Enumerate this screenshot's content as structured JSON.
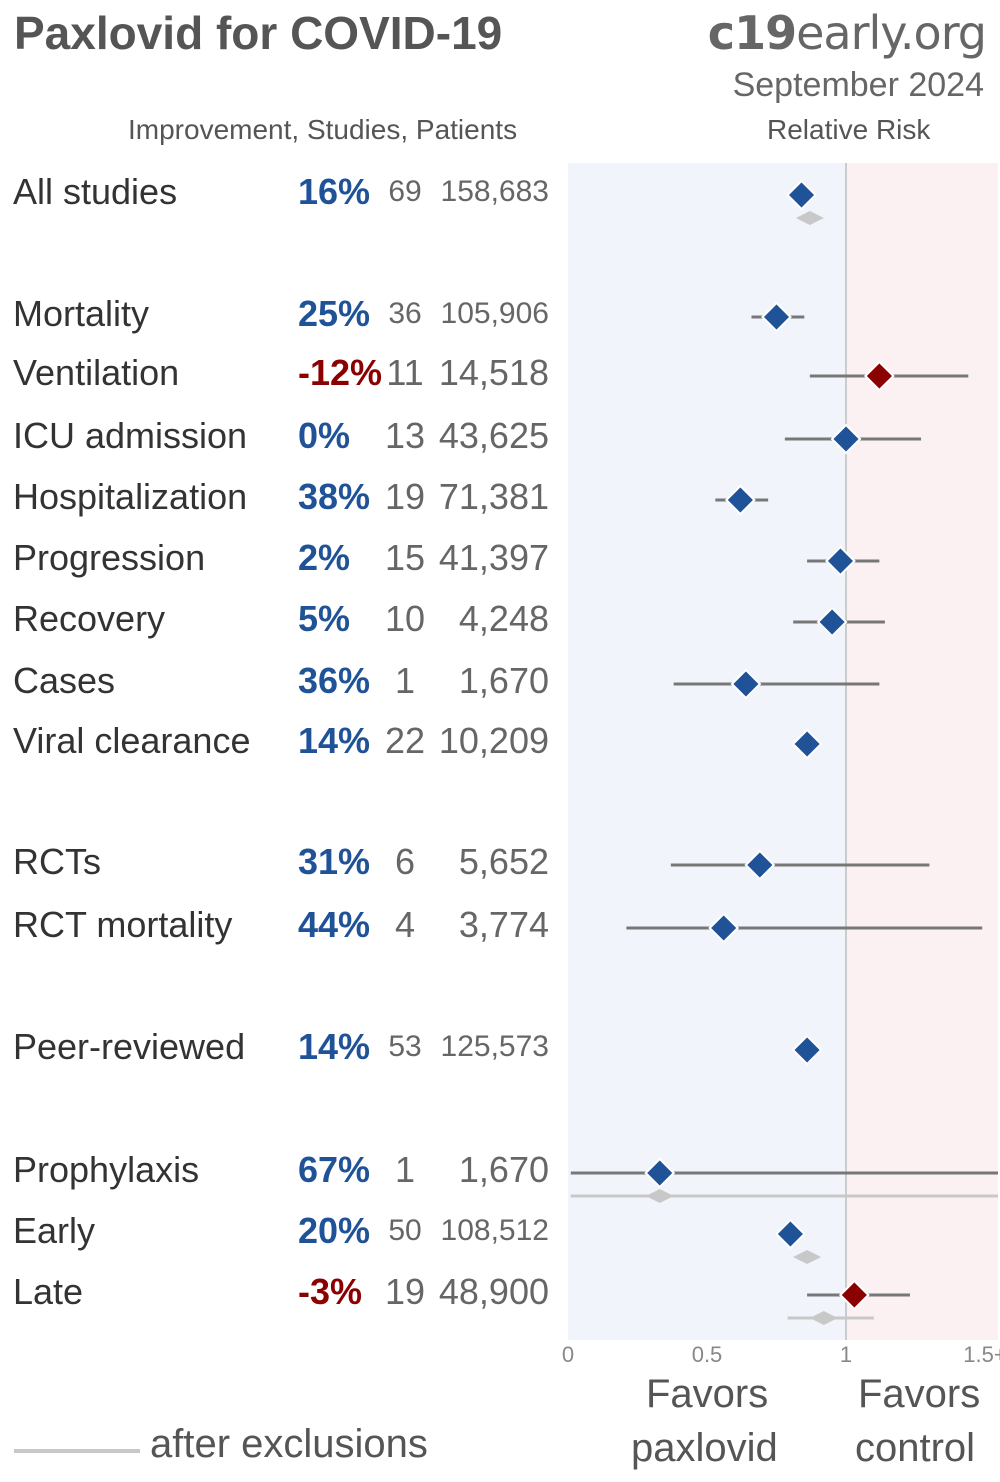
{
  "header": {
    "title": "Paxlovid for COVID-19",
    "site_prefix": "c19",
    "site_suffix": "early.org",
    "date": "September 2024",
    "columns": "Improvement, Studies, Patients",
    "rr_label": "Relative Risk"
  },
  "colors": {
    "benefit": "#1f5297",
    "harm": "#8b0000",
    "ci": "#777777",
    "after_exclusions": "#c8c8c8",
    "favors_treatment_bg": "#f2f4fb",
    "favors_control_bg": "#fbf1f2",
    "ref_line": "#cccccc"
  },
  "legend": {
    "after_exclusions": "after exclusions"
  },
  "favors": {
    "left_1": "Favors",
    "left_2": "paxlovid",
    "right_1": "Favors",
    "right_2": "control"
  },
  "chart_data": {
    "type": "forest",
    "xlabel": "Relative Risk",
    "xlim": [
      0,
      1.5
    ],
    "ticks": [
      {
        "value": 0,
        "label": "0"
      },
      {
        "value": 0.5,
        "label": "0.5"
      },
      {
        "value": 1,
        "label": "1"
      },
      {
        "value": 1.5,
        "label": "1.5+"
      }
    ],
    "rows": [
      {
        "label": "All studies",
        "improvement": "16%",
        "studies": "69",
        "patients": "158,683",
        "rr": 0.84,
        "ci": [
          0.8,
          0.88
        ],
        "after_exclusions": {
          "rr": 0.87,
          "ci": [
            0.84,
            0.9
          ]
        }
      },
      {
        "label": "Mortality",
        "improvement": "25%",
        "studies": "36",
        "patients": "105,906",
        "rr": 0.75,
        "ci": [
          0.66,
          0.85
        ]
      },
      {
        "label": "Ventilation",
        "improvement": "-12%",
        "studies": "11",
        "patients": "14,518",
        "rr": 1.12,
        "ci": [
          0.87,
          1.44
        ]
      },
      {
        "label": "ICU admission",
        "improvement": "0%",
        "studies": "13",
        "patients": "43,625",
        "rr": 1.0,
        "ci": [
          0.78,
          1.27
        ]
      },
      {
        "label": "Hospitalization",
        "improvement": "38%",
        "studies": "19",
        "patients": "71,381",
        "rr": 0.62,
        "ci": [
          0.53,
          0.72
        ]
      },
      {
        "label": "Progression",
        "improvement": "2%",
        "studies": "15",
        "patients": "41,397",
        "rr": 0.98,
        "ci": [
          0.86,
          1.12
        ]
      },
      {
        "label": "Recovery",
        "improvement": "5%",
        "studies": "10",
        "patients": "4,248",
        "rr": 0.95,
        "ci": [
          0.81,
          1.14
        ]
      },
      {
        "label": "Cases",
        "improvement": "36%",
        "studies": "1",
        "patients": "1,670",
        "rr": 0.64,
        "ci": [
          0.38,
          1.12
        ]
      },
      {
        "label": "Viral clearance",
        "improvement": "14%",
        "studies": "22",
        "patients": "10,209",
        "rr": 0.86,
        "ci": [
          0.82,
          0.91
        ]
      },
      {
        "label": "RCTs",
        "improvement": "31%",
        "studies": "6",
        "patients": "5,652",
        "rr": 0.69,
        "ci": [
          0.37,
          1.3
        ]
      },
      {
        "label": "RCT mortality",
        "improvement": "44%",
        "studies": "4",
        "patients": "3,774",
        "rr": 0.56,
        "ci": [
          0.21,
          1.49
        ]
      },
      {
        "label": "Peer-reviewed",
        "improvement": "14%",
        "studies": "53",
        "patients": "125,573",
        "rr": 0.86,
        "ci": [
          0.81,
          0.91
        ]
      },
      {
        "label": "Prophylaxis",
        "improvement": "67%",
        "studies": "1",
        "patients": "1,670",
        "rr": 0.33,
        "ci": [
          0.01,
          1.6
        ],
        "after_exclusions": {
          "rr": 0.33,
          "ci": [
            0.01,
            1.6
          ]
        }
      },
      {
        "label": "Early",
        "improvement": "20%",
        "studies": "50",
        "patients": "108,512",
        "rr": 0.8,
        "ci": [
          0.76,
          0.85
        ],
        "after_exclusions": {
          "rr": 0.86,
          "ci": [
            0.82,
            0.9
          ]
        }
      },
      {
        "label": "Late",
        "improvement": "-3%",
        "studies": "19",
        "patients": "48,900",
        "rr": 1.03,
        "ci": [
          0.86,
          1.23
        ],
        "after_exclusions": {
          "rr": 0.92,
          "ci": [
            0.79,
            1.1
          ]
        }
      }
    ]
  }
}
